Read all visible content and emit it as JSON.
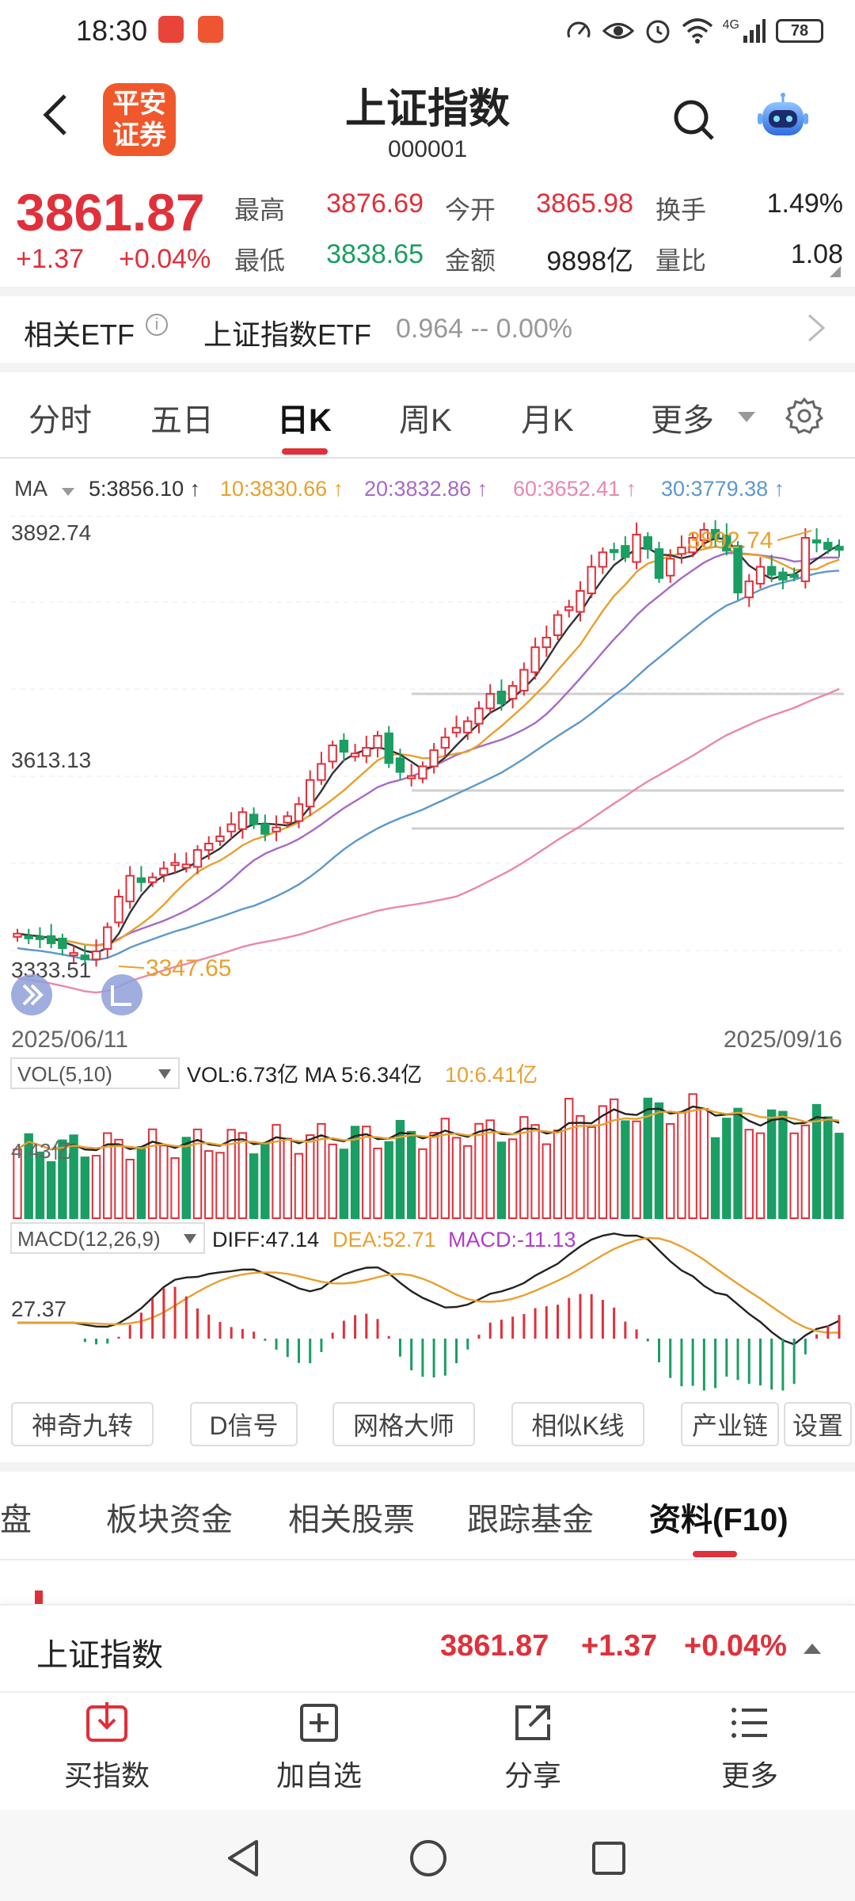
{
  "status_bar": {
    "time": "18:30",
    "mini_icon_1": "华为",
    "mini_icon_2": "平安证券",
    "network": "4G",
    "battery": "78"
  },
  "header": {
    "title": "上证指数",
    "code": "000001",
    "logo_line1": "平安",
    "logo_line2": "证券"
  },
  "quote": {
    "price": "3861.87",
    "change": "+1.37",
    "change_pct": "+0.04%",
    "high_label": "最高",
    "high": "3876.69",
    "open_label": "今开",
    "open": "3865.98",
    "turnover_label": "换手",
    "turnover": "1.49%",
    "low_label": "最低",
    "low": "3838.65",
    "amount_label": "金额",
    "amount": "9898亿",
    "volume_ratio_label": "量比",
    "volume_ratio": "1.08"
  },
  "etf": {
    "label": "相关ETF",
    "name": "上证指数ETF",
    "value": "0.964  --  0.00%"
  },
  "chart_tabs": [
    "分时",
    "五日",
    "日K",
    "周K",
    "月K",
    "更多"
  ],
  "chart_tab_active": 2,
  "chart_data": {
    "type": "candlestick",
    "x_start": "2025/06/11",
    "x_end": "2025/09/16",
    "y_labels": [
      "3892.74",
      "3613.13",
      "3333.51"
    ],
    "annot_high": "3892.74",
    "annot_low": "3347.65",
    "ma_label": "MA",
    "ma": [
      {
        "name": "5:3856.10",
        "color": "#333333"
      },
      {
        "name": "10:3830.66",
        "color": "#e8a02e"
      },
      {
        "name": "20:3832.86",
        "color": "#a56ac8"
      },
      {
        "name": "60:3652.41",
        "color": "#ea86b0"
      },
      {
        "name": "30:3779.38",
        "color": "#5d98cc"
      }
    ],
    "closes": [
      3384,
      3380,
      3378,
      3372,
      3366,
      3360,
      3352,
      3362,
      3392,
      3430,
      3456,
      3448,
      3454,
      3465,
      3472,
      3470,
      3488,
      3496,
      3505,
      3520,
      3535,
      3520,
      3508,
      3516,
      3530,
      3545,
      3575,
      3595,
      3618,
      3610,
      3608,
      3615,
      3630,
      3596,
      3585,
      3580,
      3592,
      3612,
      3628,
      3640,
      3648,
      3664,
      3682,
      3670,
      3692,
      3712,
      3740,
      3752,
      3780,
      3790,
      3810,
      3840,
      3858,
      3860,
      3852,
      3880,
      3862,
      3826,
      3850,
      3864,
      3876,
      3886,
      3876,
      3860,
      3808,
      3822,
      3840,
      3830,
      3824,
      3828,
      3876,
      3870,
      3862,
      3861
    ],
    "vol": {
      "label": "VOL(5,10)",
      "line": "VOL:6.73亿 MA 5:6.34亿",
      "ma10": "10:6.41亿",
      "axis": "4.43亿"
    },
    "macd": {
      "label": "MACD(12,26,9)",
      "diff": "DIFF:47.14",
      "dea": "DEA:52.71",
      "macd": "MACD:-11.13",
      "axis": "27.37"
    }
  },
  "indicator_buttons": [
    "神奇九转",
    "D信号",
    "网格大师",
    "相似K线",
    "产业链",
    "设置"
  ],
  "bottom_tabs": [
    "盯盘",
    "板块资金",
    "相关股票",
    "跟踪基金",
    "资料(F10)"
  ],
  "bottom_tab_active": 4,
  "ticker": {
    "name": "上证指数",
    "price": "3861.87",
    "change": "+1.37",
    "pct": "+0.04%"
  },
  "actions": [
    "买指数",
    "加自选",
    "分享",
    "更多"
  ]
}
